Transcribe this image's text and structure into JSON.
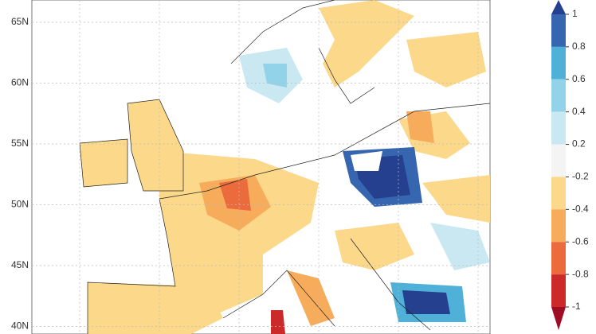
{
  "map": {
    "lat_labels": [
      "65N",
      "60N",
      "55N",
      "50N",
      "45N",
      "40N"
    ],
    "colorbar": {
      "ticks": [
        1,
        0.8,
        0.6,
        0.4,
        0.2,
        -0.2,
        -0.4,
        -0.6,
        -0.8,
        -1
      ],
      "colors": [
        "#24408e",
        "#3766b0",
        "#4fb0d8",
        "#93d3ea",
        "#c9e8f2",
        "#f4f4f4",
        "#fcd88a",
        "#f7ac5c",
        "#ec6b3c",
        "#cc2a2a",
        "#9e0d25"
      ]
    }
  }
}
